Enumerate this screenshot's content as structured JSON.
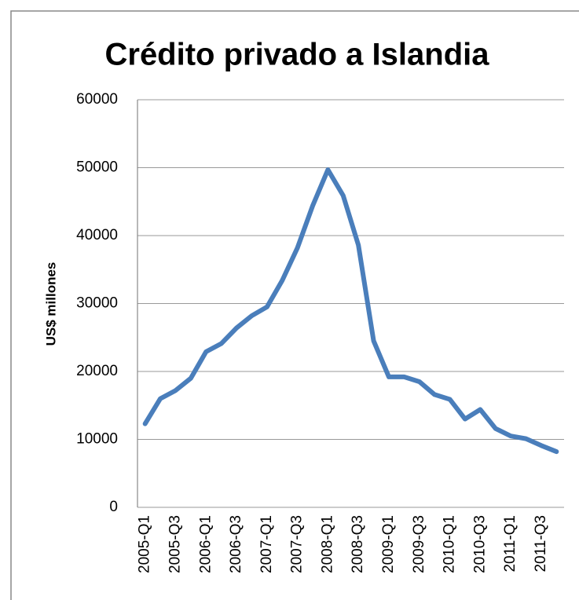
{
  "chart_data": {
    "type": "line",
    "title": "Crédito privado a Islandia",
    "y_label": "US$ millones",
    "categories": [
      "2005-Q1",
      null,
      "2005-Q3",
      null,
      "2006-Q1",
      null,
      "2006-Q3",
      null,
      "2007-Q1",
      null,
      "2007-Q3",
      null,
      "2008-Q1",
      null,
      "2008-Q3",
      null,
      "2009-Q1",
      null,
      "2009-Q3",
      null,
      "2010-Q1",
      null,
      "2010-Q3",
      null,
      "2011-Q1",
      null,
      "2011-Q3",
      null
    ],
    "series": [
      {
        "name": "Crédito privado",
        "color": "#4a7ebb",
        "values": [
          12300,
          16000,
          17200,
          19000,
          22900,
          24100,
          26400,
          28200,
          29500,
          33400,
          38200,
          44400,
          49700,
          45900,
          38600,
          24500,
          19200,
          19200,
          18500,
          16600,
          15900,
          13000,
          14400,
          11600,
          10500,
          10100,
          9100,
          8200
        ]
      }
    ],
    "ylim": [
      0,
      60000
    ],
    "yticks": [
      0,
      10000,
      20000,
      30000,
      40000,
      50000,
      60000
    ],
    "grid": true
  }
}
